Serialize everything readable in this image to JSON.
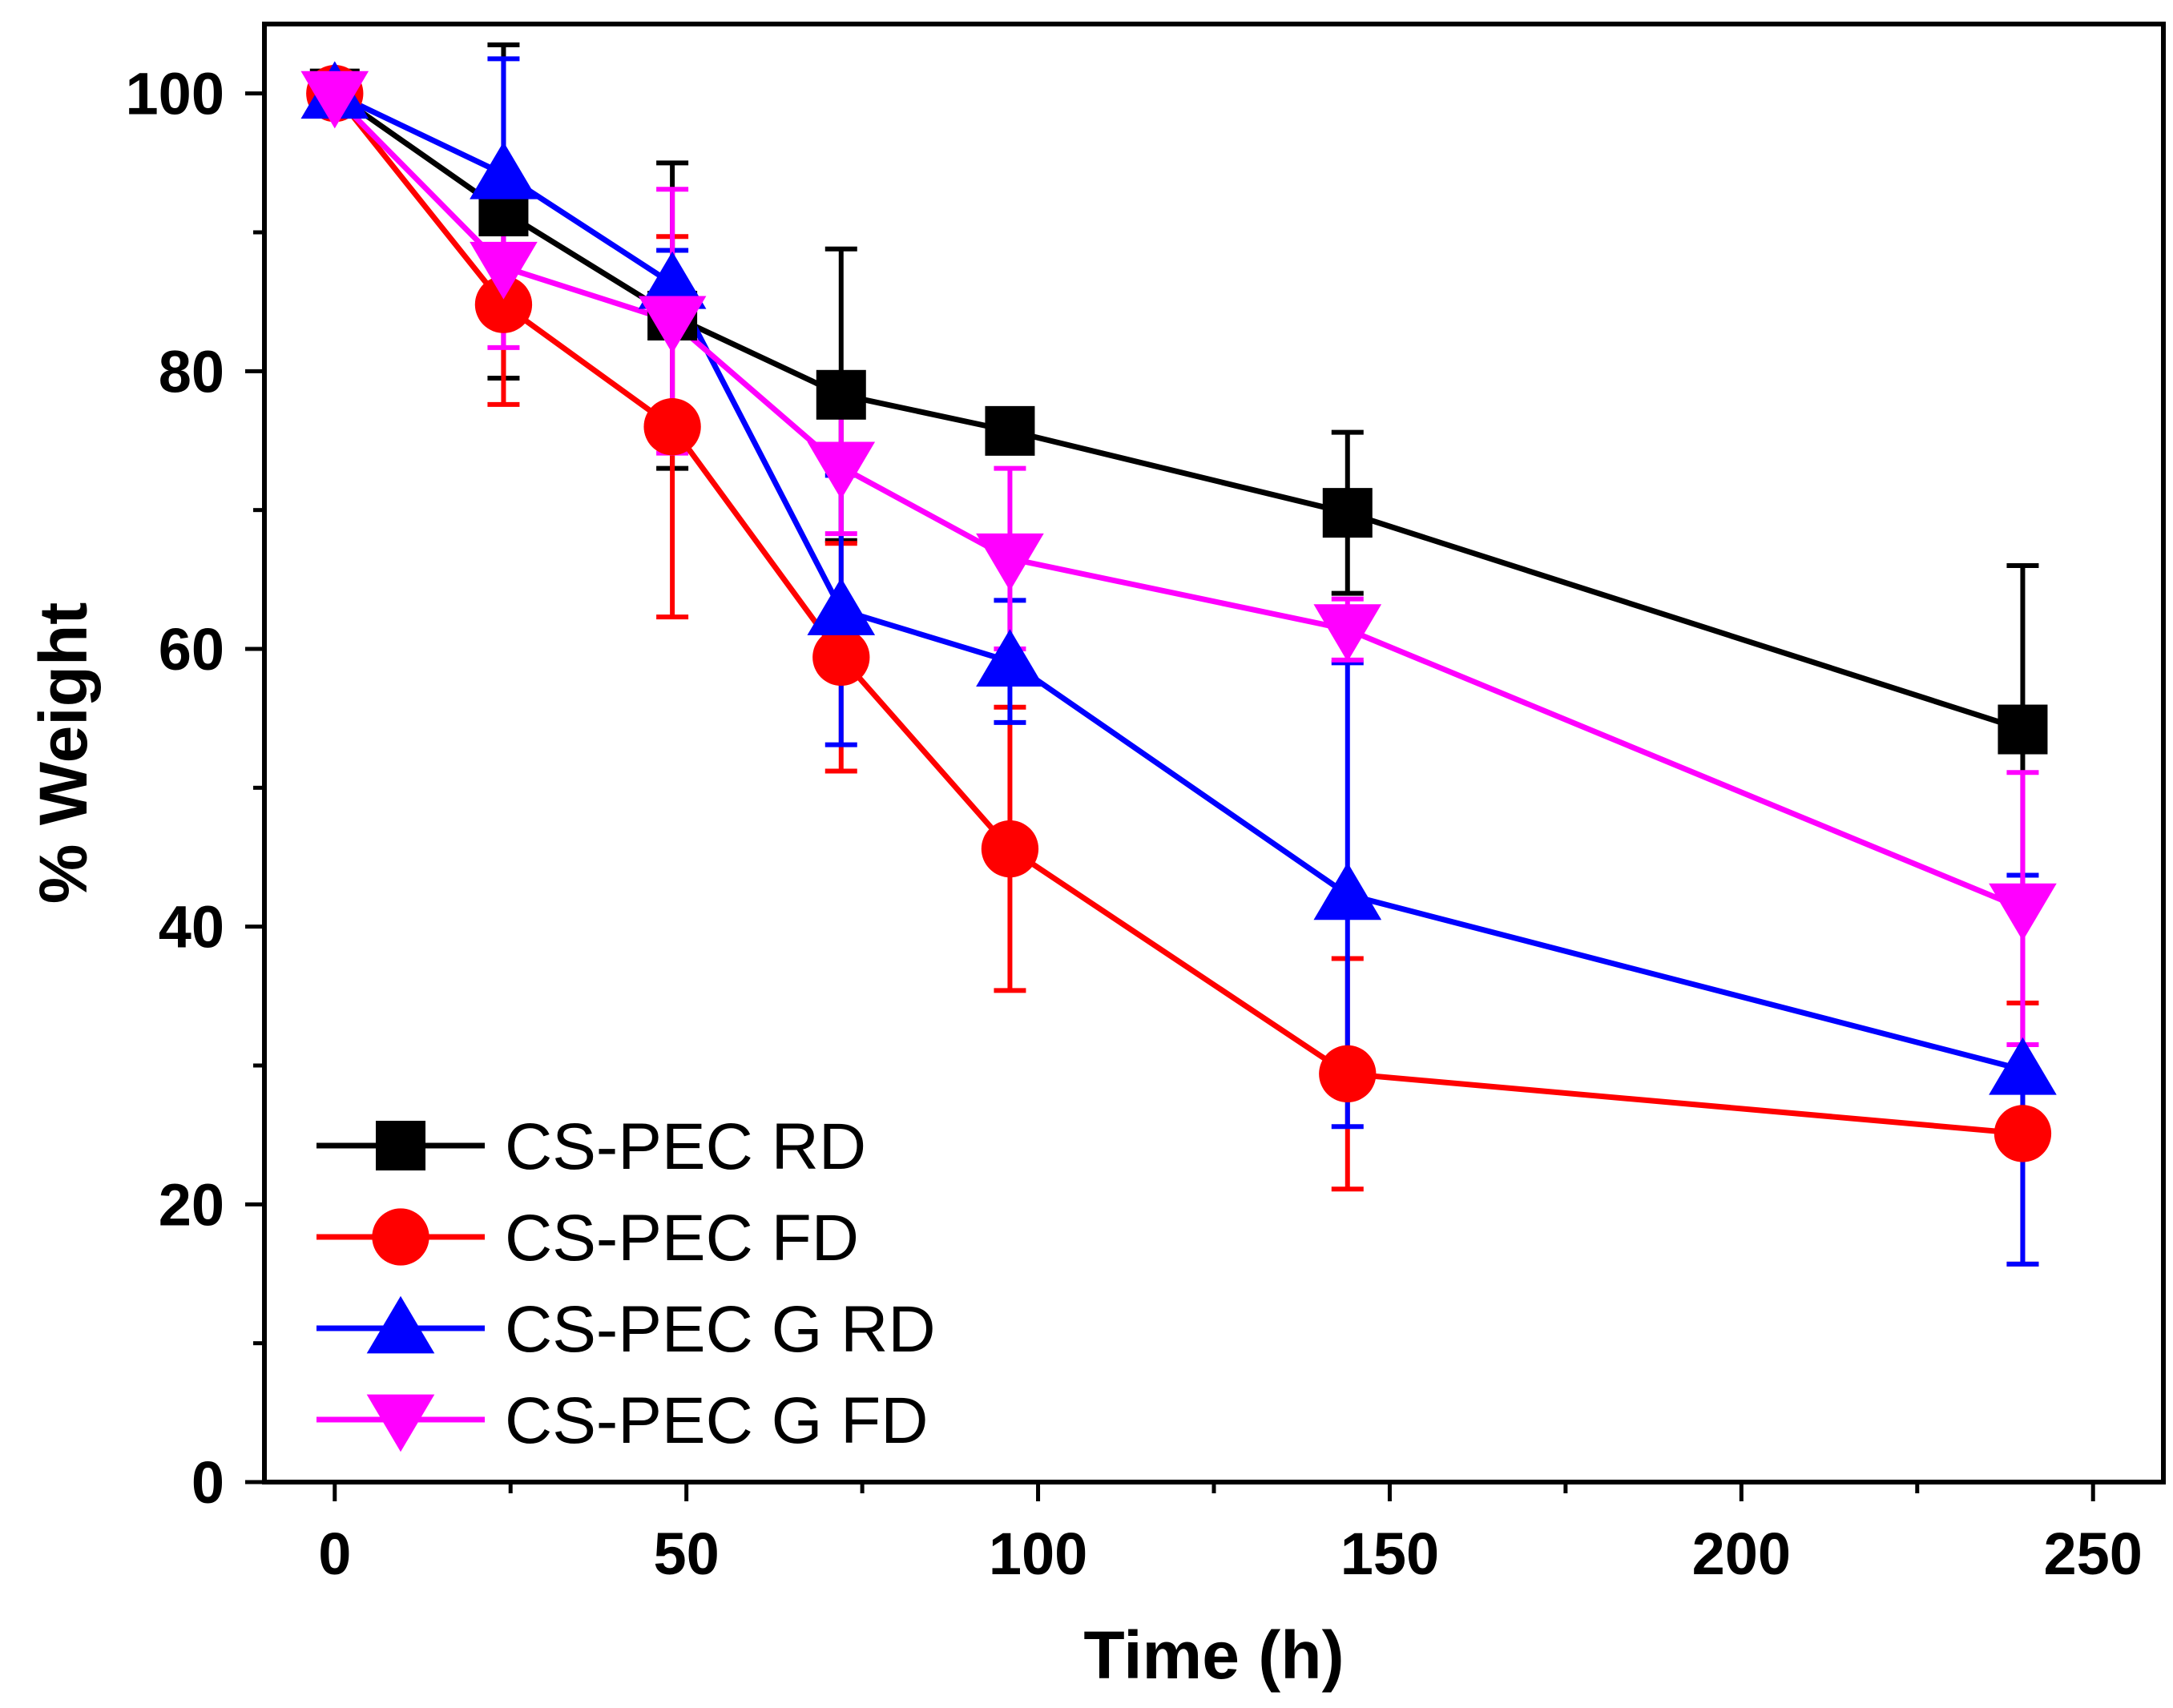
{
  "chart_data": {
    "type": "line",
    "title": "",
    "xlabel": "Time (h)",
    "ylabel": "% Weight",
    "xlim": [
      -10,
      260
    ],
    "ylim": [
      0,
      105
    ],
    "xticks": [
      0,
      50,
      100,
      150,
      200,
      250
    ],
    "yticks": [
      0,
      20,
      40,
      60,
      80,
      100
    ],
    "xtick_labels": [
      "0",
      "50",
      "100",
      "150",
      "200",
      "250"
    ],
    "ytick_labels": [
      "0",
      "20",
      "40",
      "60",
      "80",
      "100"
    ],
    "x_minor": 25,
    "y_minor": 10,
    "grid": false,
    "legend_position": "bottom-left",
    "x": [
      0,
      24,
      48,
      72,
      96,
      144,
      240
    ],
    "series": [
      {
        "name": "CS-PEC RD",
        "color": "#000000",
        "marker": "square",
        "values": [
          100,
          91.5,
          84,
          78.3,
          75.7,
          69.8,
          54.2
        ],
        "error": [
          1.5,
          12,
          11,
          10.5,
          1,
          5.8,
          11.8
        ]
      },
      {
        "name": "CS-PEC FD",
        "color": "#ff0000",
        "marker": "circle",
        "values": [
          100,
          84.8,
          76,
          59.4,
          45.6,
          29.4,
          25.1
        ],
        "error": [
          0.5,
          7.2,
          13.7,
          8.2,
          10.2,
          8.3,
          9.4
        ]
      },
      {
        "name": "CS-PEC G RD",
        "color": "#0000ff",
        "marker": "triangle-up",
        "values": [
          100,
          94.2,
          86.3,
          62.8,
          59.1,
          42.3,
          29.7
        ],
        "error": [
          0.5,
          8.3,
          2.4,
          9.7,
          4.4,
          16.7,
          14
        ]
      },
      {
        "name": "CS-PEC G FD",
        "color": "#ff00ff",
        "marker": "triangle-down",
        "values": [
          99.8,
          87.5,
          83.6,
          73.1,
          66.5,
          61.4,
          41.3
        ],
        "error": [
          0.5,
          5.8,
          9.5,
          4.8,
          6.5,
          2.2,
          9.8
        ]
      }
    ]
  }
}
